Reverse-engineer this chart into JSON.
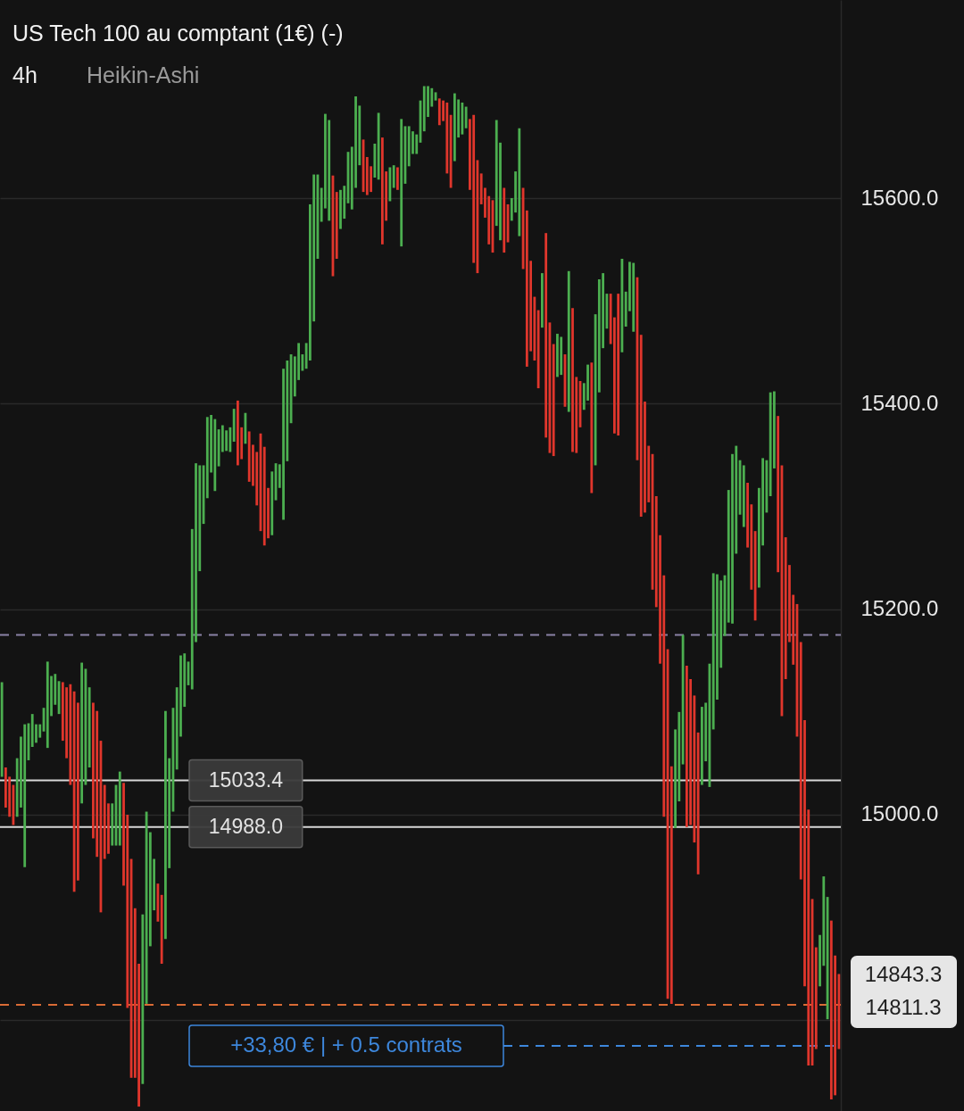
{
  "chart_data": {
    "type": "candlestick",
    "title": "US Tech 100 au comptant (1€) (-)",
    "subtitle": "4h",
    "annotations": [
      "Heikin-Ashi",
      "14843.3",
      "14811.3"
    ],
    "categories": [
      null,
      null,
      null,
      null,
      null,
      null,
      null,
      null,
      null,
      null,
      null,
      null,
      null,
      null,
      null,
      null,
      null,
      null,
      null,
      null,
      null,
      null,
      null,
      null,
      null,
      null,
      null,
      null,
      null,
      null,
      null,
      null,
      null,
      null,
      null,
      null,
      null,
      null,
      null,
      null,
      null,
      null,
      null,
      null,
      null,
      null,
      null,
      null,
      null,
      null,
      null,
      null,
      null,
      null,
      null,
      null,
      null,
      null,
      null,
      null,
      null,
      null,
      null,
      null,
      null,
      null,
      null,
      null,
      null,
      null,
      null,
      null,
      null,
      null,
      null,
      null,
      null,
      null,
      null,
      null,
      null,
      null,
      null,
      null,
      null,
      null,
      null,
      null,
      null,
      null,
      null,
      null,
      null,
      null,
      null,
      null,
      null,
      null,
      null,
      null,
      null,
      null,
      null,
      null,
      null,
      null,
      null,
      null,
      null,
      null,
      null,
      null,
      null,
      null,
      null,
      null,
      null,
      null,
      null,
      null,
      null,
      null,
      null,
      null,
      null,
      null,
      null,
      null,
      null,
      null,
      null,
      null,
      null,
      null,
      null,
      null,
      null,
      null,
      null,
      null,
      null,
      null,
      null,
      null,
      null,
      null,
      null,
      null,
      null,
      null,
      null,
      null,
      null,
      null,
      null,
      null,
      null,
      null,
      null,
      null,
      null,
      null,
      null,
      null,
      null,
      null,
      null,
      null,
      null,
      null,
      null,
      null,
      null,
      null,
      null,
      null,
      null,
      null,
      null,
      null,
      null,
      null,
      null,
      null,
      null,
      null,
      null,
      null,
      null,
      null,
      null,
      null,
      null,
      null,
      null,
      null,
      null,
      null,
      null,
      null,
      null,
      null,
      null,
      null,
      null,
      null,
      null,
      null,
      null,
      null,
      null,
      null,
      null,
      null,
      null,
      null,
      null,
      null,
      null,
      null,
      null
    ],
    "ohlc": [
      [
        15037,
        15129,
        15037,
        15129
      ],
      [
        15046,
        15046,
        15007,
        15007
      ],
      [
        15037,
        15037,
        14998,
        14998
      ],
      [
        15029,
        15029,
        14990,
        14990
      ],
      [
        14998,
        15055,
        14998,
        15055
      ],
      [
        15007,
        15076,
        15007,
        15076
      ],
      [
        14949,
        15088,
        14949,
        15088
      ],
      [
        15053,
        15089,
        15053,
        15089
      ],
      [
        15066,
        15098,
        15066,
        15098
      ],
      [
        15070,
        15088,
        15070,
        15088
      ],
      [
        15075,
        15088,
        15075,
        15088
      ],
      [
        15081,
        15104,
        15081,
        15104
      ],
      [
        15065,
        15149,
        15065,
        15149
      ],
      [
        15096,
        15135,
        15096,
        15135
      ],
      [
        15107,
        15137,
        15107,
        15137
      ],
      [
        15098,
        15130,
        15098,
        15130
      ],
      [
        15129,
        15129,
        15072,
        15072
      ],
      [
        15124,
        15124,
        15055,
        15055
      ],
      [
        15127,
        15127,
        15029,
        15029
      ],
      [
        15120,
        15120,
        14925,
        14925
      ],
      [
        15109,
        15109,
        14936,
        14936
      ],
      [
        15011,
        15148,
        15011,
        15148
      ],
      [
        15029,
        15142,
        15029,
        15142
      ],
      [
        15046,
        15124,
        15046,
        15124
      ],
      [
        15109,
        15109,
        14977,
        14977
      ],
      [
        15101,
        15101,
        14959,
        14959
      ],
      [
        15072,
        15072,
        14905,
        14905
      ],
      [
        15029,
        15029,
        14957,
        14957
      ],
      [
        15011,
        15011,
        14962,
        14962
      ],
      [
        14970,
        15011,
        14970,
        15011
      ],
      [
        14970,
        15029,
        14970,
        15029
      ],
      [
        14970,
        15042,
        14970,
        15042
      ],
      [
        15031,
        15031,
        14931,
        14931
      ],
      [
        15000,
        15000,
        14812,
        14812
      ],
      [
        14957,
        14957,
        14744,
        14744
      ],
      [
        14909,
        14909,
        14744,
        14744
      ],
      [
        14855,
        14855,
        14716,
        14716
      ],
      [
        14738,
        14903,
        14738,
        14903
      ],
      [
        14816,
        15003,
        14816,
        15003
      ],
      [
        14872,
        14983,
        14872,
        14983
      ],
      [
        14907,
        14957,
        14907,
        14957
      ],
      [
        14933,
        14933,
        14896,
        14896
      ],
      [
        14922,
        14922,
        14855,
        14855
      ],
      [
        14879,
        15101,
        14879,
        15101
      ],
      [
        14948,
        15055,
        14948,
        15055
      ],
      [
        15003,
        15104,
        15003,
        15104
      ],
      [
        15044,
        15124,
        15044,
        15124
      ],
      [
        15076,
        15155,
        15076,
        15155
      ],
      [
        15105,
        15157,
        15105,
        15157
      ],
      [
        15126,
        15149,
        15126,
        15149
      ],
      [
        15122,
        15278,
        15122,
        15278
      ],
      [
        15168,
        15342,
        15168,
        15342
      ],
      [
        15237,
        15340,
        15237,
        15340
      ],
      [
        15283,
        15340,
        15283,
        15340
      ],
      [
        15308,
        15387,
        15308,
        15387
      ],
      [
        15333,
        15389,
        15333,
        15389
      ],
      [
        15315,
        15385,
        15315,
        15385
      ],
      [
        15339,
        15375,
        15339,
        15375
      ],
      [
        15353,
        15379,
        15353,
        15379
      ],
      [
        15354,
        15374,
        15354,
        15374
      ],
      [
        15353,
        15377,
        15353,
        15377
      ],
      [
        15363,
        15395,
        15363,
        15395
      ],
      [
        15403,
        15403,
        15340,
        15340
      ],
      [
        15377,
        15377,
        15346,
        15346
      ],
      [
        15361,
        15391,
        15361,
        15391
      ],
      [
        15373,
        15373,
        15324,
        15324
      ],
      [
        15360,
        15360,
        15320,
        15320
      ],
      [
        15353,
        15353,
        15301,
        15301
      ],
      [
        15371,
        15371,
        15276,
        15276
      ],
      [
        15358,
        15358,
        15262,
        15262
      ],
      [
        15318,
        15318,
        15269,
        15269
      ],
      [
        15272,
        15334,
        15272,
        15334
      ],
      [
        15306,
        15342,
        15306,
        15342
      ],
      [
        15318,
        15341,
        15318,
        15341
      ],
      [
        15287,
        15434,
        15287,
        15434
      ],
      [
        15344,
        15442,
        15344,
        15442
      ],
      [
        15381,
        15448,
        15381,
        15448
      ],
      [
        15407,
        15446,
        15407,
        15446
      ],
      [
        15423,
        15459,
        15423,
        15459
      ],
      [
        15432,
        15448,
        15432,
        15448
      ],
      [
        15434,
        15459,
        15434,
        15459
      ],
      [
        15442,
        15594,
        15442,
        15594
      ],
      [
        15480,
        15623,
        15480,
        15623
      ],
      [
        15541,
        15623,
        15541,
        15623
      ],
      [
        15577,
        15610,
        15577,
        15610
      ],
      [
        15590,
        15682,
        15590,
        15682
      ],
      [
        15578,
        15676,
        15578,
        15676
      ],
      [
        15622,
        15622,
        15524,
        15524
      ],
      [
        15606,
        15606,
        15541,
        15541
      ],
      [
        15570,
        15608,
        15570,
        15608
      ],
      [
        15580,
        15612,
        15580,
        15612
      ],
      [
        15595,
        15645,
        15595,
        15645
      ],
      [
        15589,
        15650,
        15589,
        15650
      ],
      [
        15610,
        15699,
        15610,
        15699
      ],
      [
        15632,
        15690,
        15632,
        15690
      ],
      [
        15657,
        15657,
        15606,
        15606
      ],
      [
        15640,
        15640,
        15603,
        15603
      ],
      [
        15631,
        15631,
        15606,
        15606
      ],
      [
        15620,
        15653,
        15620,
        15653
      ],
      [
        15618,
        15683,
        15618,
        15683
      ],
      [
        15659,
        15659,
        15555,
        15555
      ],
      [
        15626,
        15626,
        15578,
        15578
      ],
      [
        15597,
        15630,
        15597,
        15630
      ],
      [
        15610,
        15632,
        15610,
        15632
      ],
      [
        15630,
        15630,
        15608,
        15608
      ],
      [
        15553,
        15677,
        15553,
        15677
      ],
      [
        15614,
        15670,
        15614,
        15670
      ],
      [
        15631,
        15670,
        15631,
        15670
      ],
      [
        15643,
        15665,
        15643,
        15665
      ],
      [
        15643,
        15662,
        15643,
        15662
      ],
      [
        15654,
        15695,
        15654,
        15695
      ],
      [
        15665,
        15709,
        15665,
        15709
      ],
      [
        15679,
        15709,
        15679,
        15709
      ],
      [
        15689,
        15707,
        15689,
        15707
      ],
      [
        15695,
        15703,
        15695,
        15703
      ],
      [
        15697,
        15697,
        15671,
        15671
      ],
      [
        15695,
        15695,
        15675,
        15675
      ],
      [
        15693,
        15693,
        15624,
        15624
      ],
      [
        15681,
        15681,
        15610,
        15610
      ],
      [
        15636,
        15702,
        15636,
        15702
      ],
      [
        15659,
        15696,
        15659,
        15696
      ],
      [
        15662,
        15693,
        15662,
        15693
      ],
      [
        15668,
        15689,
        15668,
        15689
      ],
      [
        15677,
        15677,
        15608,
        15608
      ],
      [
        15681,
        15681,
        15537,
        15537
      ],
      [
        15637,
        15637,
        15527,
        15527
      ],
      [
        15624,
        15624,
        15594,
        15594
      ],
      [
        15610,
        15610,
        15581,
        15581
      ],
      [
        15602,
        15602,
        15555,
        15555
      ],
      [
        15598,
        15598,
        15547,
        15547
      ],
      [
        15573,
        15676,
        15573,
        15676
      ],
      [
        15559,
        15654,
        15559,
        15654
      ],
      [
        15610,
        15610,
        15547,
        15547
      ],
      [
        15594,
        15594,
        15557,
        15557
      ],
      [
        15578,
        15600,
        15578,
        15600
      ],
      [
        15586,
        15626,
        15586,
        15626
      ],
      [
        15563,
        15668,
        15563,
        15668
      ],
      [
        15610,
        15610,
        15531,
        15531
      ],
      [
        15588,
        15588,
        15436,
        15436
      ],
      [
        15539,
        15539,
        15451,
        15451
      ],
      [
        15504,
        15504,
        15442,
        15442
      ],
      [
        15491,
        15491,
        15415,
        15415
      ],
      [
        15474,
        15527,
        15474,
        15527
      ],
      [
        15566,
        15566,
        15367,
        15367
      ],
      [
        15479,
        15479,
        15352,
        15352
      ],
      [
        15458,
        15458,
        15349,
        15349
      ],
      [
        15426,
        15468,
        15426,
        15468
      ],
      [
        15428,
        15465,
        15428,
        15465
      ],
      [
        15448,
        15448,
        15397,
        15397
      ],
      [
        15392,
        15529,
        15392,
        15529
      ],
      [
        15493,
        15493,
        15353,
        15353
      ],
      [
        15426,
        15426,
        15352,
        15352
      ],
      [
        15422,
        15422,
        15377,
        15377
      ],
      [
        15394,
        15420,
        15394,
        15420
      ],
      [
        15403,
        15438,
        15403,
        15438
      ],
      [
        15440,
        15440,
        15313,
        15313
      ],
      [
        15340,
        15487,
        15340,
        15487
      ],
      [
        15411,
        15521,
        15411,
        15521
      ],
      [
        15454,
        15527,
        15454,
        15527
      ],
      [
        15473,
        15507,
        15473,
        15507
      ],
      [
        15507,
        15507,
        15458,
        15458
      ],
      [
        15484,
        15484,
        15371,
        15371
      ],
      [
        15507,
        15507,
        15369,
        15369
      ],
      [
        15450,
        15541,
        15450,
        15541
      ],
      [
        15475,
        15509,
        15475,
        15509
      ],
      [
        15490,
        15538,
        15490,
        15538
      ],
      [
        15470,
        15537,
        15470,
        15537
      ],
      [
        15523,
        15523,
        15345,
        15345
      ],
      [
        15467,
        15467,
        15290,
        15290
      ],
      [
        15402,
        15402,
        15294,
        15294
      ],
      [
        15359,
        15359,
        15304,
        15304
      ],
      [
        15351,
        15351,
        15219,
        15219
      ],
      [
        15310,
        15310,
        15202,
        15202
      ],
      [
        15272,
        15272,
        15147,
        15147
      ],
      [
        15233,
        15233,
        14998,
        14998
      ],
      [
        15161,
        15161,
        14821,
        14821
      ],
      [
        15047,
        15047,
        14816,
        14816
      ],
      [
        14987,
        15083,
        14987,
        15083
      ],
      [
        15013,
        15100,
        15013,
        15100
      ],
      [
        15049,
        15175,
        15049,
        15175
      ],
      [
        15145,
        15145,
        14988,
        14988
      ],
      [
        15132,
        15132,
        14990,
        14990
      ],
      [
        15116,
        15116,
        14973,
        14973
      ],
      [
        15080,
        15080,
        14942,
        14942
      ],
      [
        15029,
        15105,
        15029,
        15105
      ],
      [
        15052,
        15109,
        15052,
        15109
      ],
      [
        15027,
        15147,
        15027,
        15147
      ],
      [
        15083,
        15235,
        15083,
        15235
      ],
      [
        15112,
        15234,
        15112,
        15234
      ],
      [
        15143,
        15228,
        15143,
        15228
      ],
      [
        15174,
        15233,
        15174,
        15233
      ],
      [
        15187,
        15316,
        15187,
        15316
      ],
      [
        15186,
        15351,
        15186,
        15351
      ],
      [
        15254,
        15359,
        15254,
        15359
      ],
      [
        15292,
        15345,
        15292,
        15345
      ],
      [
        15280,
        15340,
        15280,
        15340
      ],
      [
        15323,
        15323,
        15260,
        15260
      ],
      [
        15302,
        15302,
        15219,
        15219
      ],
      [
        15276,
        15276,
        15189,
        15189
      ],
      [
        15221,
        15318,
        15221,
        15318
      ],
      [
        15262,
        15347,
        15262,
        15347
      ],
      [
        15294,
        15345,
        15294,
        15345
      ],
      [
        15310,
        15411,
        15310,
        15411
      ],
      [
        15337,
        15412,
        15337,
        15412
      ],
      [
        15388,
        15388,
        15236,
        15236
      ],
      [
        15340,
        15340,
        15096,
        15096
      ],
      [
        15270,
        15270,
        15132,
        15132
      ],
      [
        15243,
        15243,
        15168,
        15168
      ],
      [
        15214,
        15214,
        15146,
        15146
      ],
      [
        15205,
        15205,
        15076,
        15076
      ],
      [
        15168,
        15168,
        14937,
        14937
      ],
      [
        15092,
        15092,
        14833,
        14833
      ],
      [
        15005,
        15005,
        14756,
        14756
      ],
      [
        14918,
        14918,
        14756,
        14756
      ],
      [
        14871,
        14871,
        14772,
        14772
      ],
      [
        14833,
        14883,
        14833,
        14883
      ],
      [
        14853,
        14940,
        14853,
        14940
      ],
      [
        14801,
        14920,
        14801,
        14920
      ],
      [
        14897,
        14897,
        14723,
        14723
      ],
      [
        14863,
        14863,
        14727,
        14727
      ],
      [
        14845,
        14845,
        14772,
        14772
      ]
    ],
    "colors": [
      "#4caf50",
      "#e0362c",
      "#e0362c",
      "#e0362c",
      "#4caf50",
      "#4caf50",
      "#4caf50",
      "#4caf50",
      "#4caf50",
      "#4caf50",
      "#4caf50",
      "#4caf50",
      "#4caf50",
      "#4caf50",
      "#4caf50",
      "#4caf50",
      "#e0362c",
      "#e0362c",
      "#e0362c",
      "#e0362c",
      "#e0362c",
      "#4caf50",
      "#4caf50",
      "#4caf50",
      "#e0362c",
      "#e0362c",
      "#e0362c",
      "#e0362c",
      "#e0362c",
      "#4caf50",
      "#4caf50",
      "#4caf50",
      "#e0362c",
      "#e0362c",
      "#e0362c",
      "#e0362c",
      "#e0362c",
      "#4caf50",
      "#4caf50",
      "#4caf50",
      "#4caf50",
      "#e0362c",
      "#e0362c",
      "#4caf50",
      "#4caf50",
      "#4caf50",
      "#4caf50",
      "#4caf50",
      "#4caf50",
      "#4caf50",
      "#4caf50",
      "#4caf50",
      "#4caf50",
      "#4caf50",
      "#4caf50",
      "#4caf50",
      "#4caf50",
      "#4caf50",
      "#4caf50",
      "#4caf50",
      "#4caf50",
      "#4caf50",
      "#e0362c",
      "#e0362c",
      "#4caf50",
      "#e0362c",
      "#e0362c",
      "#e0362c",
      "#e0362c",
      "#e0362c",
      "#e0362c",
      "#4caf50",
      "#4caf50",
      "#4caf50",
      "#4caf50",
      "#4caf50",
      "#4caf50",
      "#4caf50",
      "#4caf50",
      "#4caf50",
      "#4caf50",
      "#4caf50",
      "#4caf50",
      "#4caf50",
      "#4caf50",
      "#4caf50",
      "#4caf50",
      "#e0362c",
      "#e0362c",
      "#4caf50",
      "#4caf50",
      "#4caf50",
      "#4caf50",
      "#4caf50",
      "#4caf50",
      "#e0362c",
      "#e0362c",
      "#e0362c",
      "#4caf50",
      "#4caf50",
      "#e0362c",
      "#e0362c",
      "#4caf50",
      "#4caf50",
      "#e0362c",
      "#4caf50",
      "#4caf50",
      "#4caf50",
      "#4caf50",
      "#4caf50",
      "#4caf50",
      "#4caf50",
      "#4caf50",
      "#4caf50",
      "#4caf50",
      "#e0362c",
      "#e0362c",
      "#e0362c",
      "#e0362c",
      "#4caf50",
      "#4caf50",
      "#4caf50",
      "#4caf50",
      "#e0362c",
      "#e0362c",
      "#e0362c",
      "#e0362c",
      "#e0362c",
      "#e0362c",
      "#e0362c",
      "#4caf50",
      "#4caf50",
      "#e0362c",
      "#e0362c",
      "#4caf50",
      "#4caf50",
      "#4caf50",
      "#e0362c",
      "#e0362c",
      "#e0362c",
      "#e0362c",
      "#e0362c",
      "#4caf50",
      "#e0362c",
      "#e0362c",
      "#e0362c",
      "#4caf50",
      "#4caf50",
      "#e0362c",
      "#4caf50",
      "#e0362c",
      "#e0362c",
      "#e0362c",
      "#4caf50",
      "#4caf50",
      "#e0362c",
      "#4caf50",
      "#4caf50",
      "#4caf50",
      "#4caf50",
      "#e0362c",
      "#e0362c",
      "#e0362c",
      "#4caf50",
      "#4caf50",
      "#4caf50",
      "#4caf50",
      "#e0362c",
      "#e0362c",
      "#e0362c",
      "#e0362c",
      "#e0362c",
      "#e0362c",
      "#e0362c",
      "#e0362c",
      "#e0362c",
      "#e0362c",
      "#4caf50",
      "#4caf50",
      "#4caf50",
      "#e0362c",
      "#e0362c",
      "#e0362c",
      "#e0362c",
      "#4caf50",
      "#4caf50",
      "#4caf50",
      "#4caf50",
      "#4caf50",
      "#4caf50",
      "#4caf50",
      "#4caf50",
      "#4caf50",
      "#4caf50",
      "#4caf50",
      "#4caf50",
      "#e0362c",
      "#e0362c",
      "#e0362c",
      "#4caf50",
      "#4caf50",
      "#4caf50",
      "#4caf50",
      "#4caf50",
      "#e0362c",
      "#e0362c",
      "#e0362c",
      "#e0362c",
      "#e0362c",
      "#e0362c",
      "#e0362c",
      "#e0362c",
      "#e0362c",
      "#e0362c",
      "#e0362c",
      "#4caf50",
      "#4caf50",
      "#4caf50",
      "#e0362c",
      "#e0362c",
      "#e0362c"
    ],
    "ylim": [
      14711.7,
      15792.8
    ],
    "yticks": [
      {
        "value": 14800,
        "label": null
      },
      {
        "value": 15000,
        "label": "15000.0"
      },
      {
        "value": 15200,
        "label": "15200.0"
      },
      {
        "value": 15400,
        "label": "15400.0"
      },
      {
        "value": 15600,
        "label": "15600.0"
      }
    ],
    "grid": "y",
    "tick_labels": "y",
    "ref_lines": [
      {
        "axis": "y",
        "value": 15175,
        "color": "#8a82a6",
        "line_style": "dashed"
      },
      {
        "axis": "y",
        "value": 15033.4,
        "label": "15033.4",
        "color": "#d8d8d8",
        "line_style": "solid"
      },
      {
        "axis": "y",
        "value": 14988.0,
        "label": "14988.0",
        "color": "#d8d8d8",
        "line_style": "solid"
      },
      {
        "axis": "y",
        "value": 14815,
        "color": "#d96b35",
        "line_style": "dashed"
      },
      {
        "axis": "y",
        "value": 14775,
        "label": "+33,80 € | + 0.5 contrats",
        "color": "#3d87dc",
        "line_style": "dashed"
      }
    ]
  }
}
